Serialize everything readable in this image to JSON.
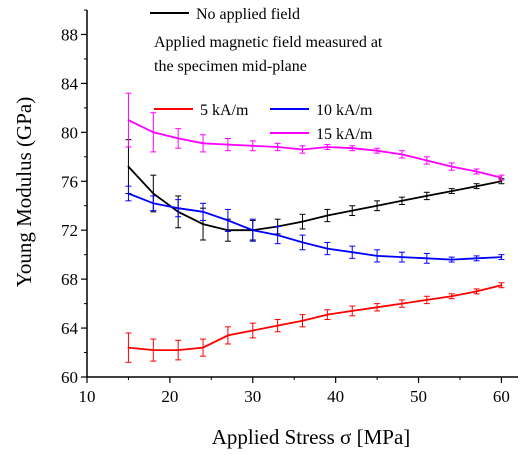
{
  "chart_data": {
    "type": "line",
    "xlabel": "Applied Stress σ [MPa]",
    "ylabel": "Young Modulus (GPa)",
    "xlim": [
      10,
      62
    ],
    "ylim": [
      60,
      90
    ],
    "xticks": [
      10,
      20,
      30,
      40,
      50,
      60
    ],
    "yticks": [
      60,
      64,
      68,
      72,
      76,
      80,
      84,
      88
    ],
    "grid": false,
    "legend_position": "top",
    "legend_note": [
      "Applied magnetic field measured at",
      "the specimen mid-plane"
    ],
    "x": [
      15,
      18,
      21,
      24,
      27,
      30,
      33,
      36,
      39,
      42,
      45,
      48,
      51,
      54,
      57,
      60
    ],
    "series": [
      {
        "name": "No applied field",
        "color": "#000000",
        "values": [
          77.2,
          75.0,
          73.5,
          72.5,
          72.0,
          72.0,
          72.3,
          72.7,
          73.2,
          73.6,
          74.0,
          74.4,
          74.8,
          75.2,
          75.6,
          76.0
        ],
        "errors": [
          2.2,
          1.5,
          1.3,
          1.3,
          0.9,
          0.8,
          0.6,
          0.6,
          0.5,
          0.4,
          0.4,
          0.3,
          0.3,
          0.2,
          0.2,
          0.2
        ]
      },
      {
        "name": "5 kA/m",
        "color": "#ff0000",
        "values": [
          62.4,
          62.2,
          62.2,
          62.4,
          63.4,
          63.8,
          64.2,
          64.6,
          65.1,
          65.4,
          65.7,
          66.0,
          66.3,
          66.6,
          67.0,
          67.5
        ],
        "errors": [
          1.2,
          0.9,
          0.8,
          0.7,
          0.7,
          0.6,
          0.5,
          0.5,
          0.4,
          0.4,
          0.3,
          0.3,
          0.3,
          0.2,
          0.2,
          0.2
        ]
      },
      {
        "name": "10 kA/m",
        "color": "#0000ff",
        "values": [
          75.0,
          74.2,
          73.8,
          73.5,
          72.8,
          72.0,
          71.6,
          71.0,
          70.5,
          70.2,
          69.9,
          69.8,
          69.7,
          69.6,
          69.7,
          69.8
        ],
        "errors": [
          0.6,
          0.6,
          0.7,
          0.7,
          0.9,
          0.9,
          0.7,
          0.6,
          0.5,
          0.5,
          0.5,
          0.4,
          0.4,
          0.2,
          0.2,
          0.2
        ]
      },
      {
        "name": "15 kA/m",
        "color": "#ff00ff",
        "values": [
          81.0,
          80.0,
          79.5,
          79.1,
          79.0,
          78.9,
          78.8,
          78.6,
          78.8,
          78.7,
          78.5,
          78.2,
          77.7,
          77.2,
          76.8,
          76.3
        ],
        "errors": [
          2.2,
          1.6,
          0.8,
          0.7,
          0.5,
          0.4,
          0.3,
          0.3,
          0.2,
          0.2,
          0.2,
          0.3,
          0.3,
          0.3,
          0.2,
          0.2
        ]
      }
    ]
  }
}
